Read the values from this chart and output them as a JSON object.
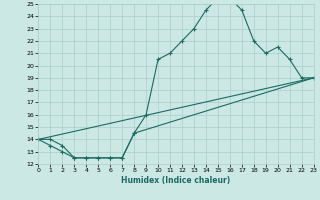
{
  "xlabel": "Humidex (Indice chaleur)",
  "bg_color": "#cce8e5",
  "grid_color": "#aacfcc",
  "line_color": "#1a6b5e",
  "curve1_x": [
    0,
    1,
    2,
    3,
    4,
    5,
    6,
    7,
    8,
    9,
    10,
    11,
    12,
    13,
    14,
    15,
    16,
    17,
    18,
    19,
    20,
    21,
    22,
    23
  ],
  "curve1_y": [
    14.0,
    14.0,
    13.5,
    12.5,
    12.5,
    12.5,
    12.5,
    12.5,
    14.5,
    16.0,
    20.5,
    21.0,
    22.0,
    23.0,
    24.5,
    25.5,
    25.5,
    24.5,
    22.0,
    21.0,
    21.5,
    20.5,
    19.0,
    19.0
  ],
  "curve2_x": [
    0,
    1,
    2,
    3,
    4,
    5,
    6,
    7,
    8,
    23
  ],
  "curve2_y": [
    14.0,
    13.5,
    13.0,
    12.5,
    12.5,
    12.5,
    12.5,
    12.5,
    14.5,
    19.0
  ],
  "curve3_x": [
    0,
    23
  ],
  "curve3_y": [
    14.0,
    19.0
  ],
  "ylim": [
    12,
    25
  ],
  "xlim": [
    0,
    23
  ],
  "yticks": [
    12,
    13,
    14,
    15,
    16,
    17,
    18,
    19,
    20,
    21,
    22,
    23,
    24,
    25
  ],
  "xticks": [
    0,
    1,
    2,
    3,
    4,
    5,
    6,
    7,
    8,
    9,
    10,
    11,
    12,
    13,
    14,
    15,
    16,
    17,
    18,
    19,
    20,
    21,
    22,
    23
  ]
}
